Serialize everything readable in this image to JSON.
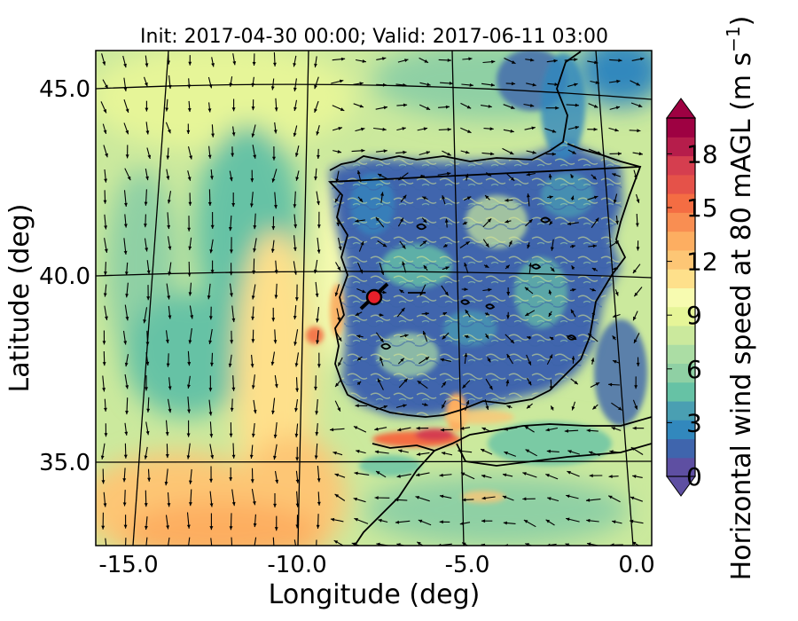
{
  "title": "Init: 2017-04-30 00:00; Valid: 2017-06-11 03:00",
  "xlabel": "Longitude (deg)",
  "ylabel": "Latitude (deg)",
  "x_ticks": [
    "-15.0",
    "-10.0",
    "-5.0",
    "0.0"
  ],
  "y_ticks": [
    "45.0",
    "40.0",
    "35.0"
  ],
  "colorbar": {
    "label_main": "Horizontal wind speed at 80 mAGL (m s",
    "label_exp": "−1",
    "label_close": ")",
    "ticks": [
      "0",
      "3",
      "6",
      "9",
      "12",
      "15",
      "18"
    ],
    "range": [
      0,
      20
    ],
    "extend": "both",
    "colormap": [
      "#5e4fa2",
      "#3f65ad",
      "#3288bd",
      "#4a9fb2",
      "#66c2a5",
      "#8fd0a4",
      "#abdda4",
      "#cbe99d",
      "#e6f598",
      "#f7fbb0",
      "#fee08b",
      "#fdc675",
      "#fdae61",
      "#f98e52",
      "#f46d43",
      "#e55249",
      "#d53e4f",
      "#b61d4b",
      "#9e0142"
    ],
    "under_color": "#5e4fa2",
    "over_color": "#9e0142"
  },
  "chart_data": {
    "type": "map",
    "field": "Horizontal wind speed at 80 mAGL",
    "lon_range": [
      -16,
      0
    ],
    "lat_range": [
      32.5,
      46
    ],
    "marker": {
      "lon": -7.7,
      "lat": 39.3,
      "color": "#e8202a"
    },
    "graticule_lons": [
      -15,
      -10,
      -5,
      0
    ],
    "graticule_lats": [
      35,
      40,
      45
    ],
    "vectors": true
  }
}
